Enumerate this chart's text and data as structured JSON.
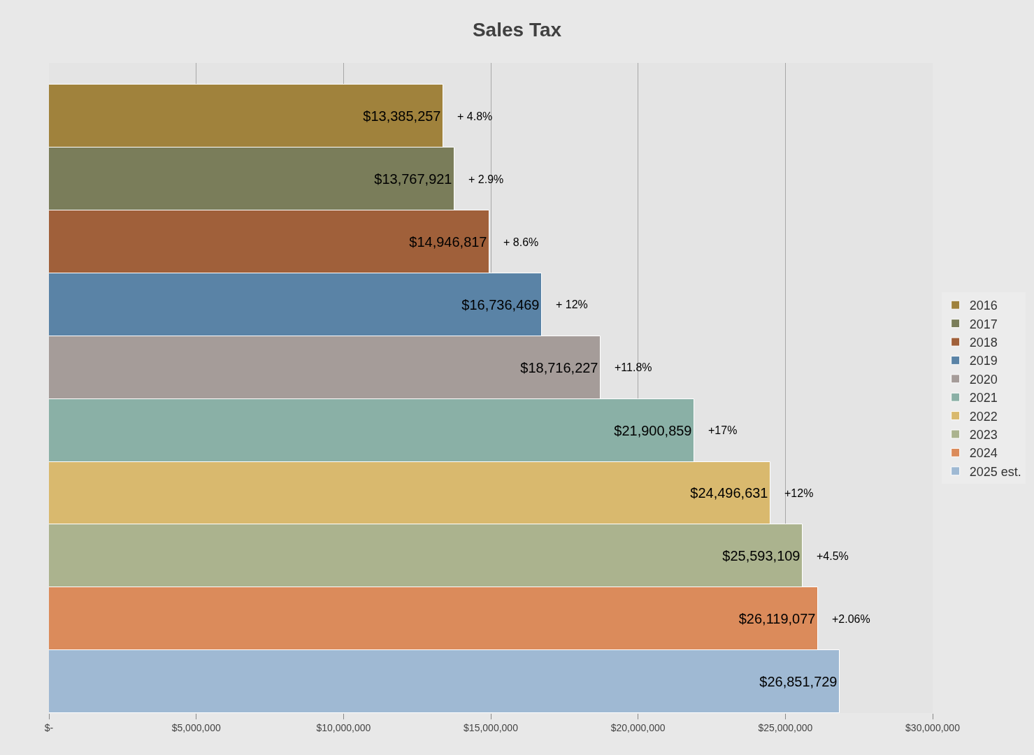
{
  "chart_data": {
    "type": "bar",
    "orientation": "horizontal",
    "title": "Sales Tax",
    "categories": [
      null,
      null,
      null,
      null,
      null,
      null,
      null,
      null,
      null,
      null
    ],
    "series": [
      {
        "name": "2016",
        "color": "#a0823c",
        "values": [
          13385257,
          null,
          null,
          null,
          null,
          null,
          null,
          null,
          null,
          null
        ],
        "value_labels": [
          "$13,385,257",
          null,
          null,
          null,
          null,
          null,
          null,
          null,
          null,
          null
        ]
      },
      {
        "name": "2017",
        "color": "#7a7d5a",
        "values": [
          null,
          13767921,
          null,
          null,
          null,
          null,
          null,
          null,
          null,
          null
        ],
        "value_labels": [
          null,
          "$13,767,921",
          null,
          null,
          null,
          null,
          null,
          null,
          null,
          null
        ]
      },
      {
        "name": "2018",
        "color": "#a0603a",
        "values": [
          null,
          null,
          14946817,
          null,
          null,
          null,
          null,
          null,
          null,
          null
        ],
        "value_labels": [
          null,
          null,
          "$14,946,817",
          null,
          null,
          null,
          null,
          null,
          null,
          null
        ]
      },
      {
        "name": "2019",
        "color": "#5a83a6",
        "values": [
          null,
          null,
          null,
          16736469,
          null,
          null,
          null,
          null,
          null,
          null
        ],
        "value_labels": [
          null,
          null,
          null,
          "$16,736,469",
          null,
          null,
          null,
          null,
          null,
          null
        ]
      },
      {
        "name": "2020",
        "color": "#a59c99",
        "values": [
          null,
          null,
          null,
          null,
          18716227,
          null,
          null,
          null,
          null,
          null
        ],
        "value_labels": [
          null,
          null,
          null,
          null,
          "$18,716,227",
          null,
          null,
          null,
          null,
          null
        ]
      },
      {
        "name": "2021",
        "color": "#8ab0a6",
        "values": [
          null,
          null,
          null,
          null,
          null,
          21900859,
          null,
          null,
          null,
          null
        ],
        "value_labels": [
          null,
          null,
          null,
          null,
          null,
          "$21,900,859",
          null,
          null,
          null,
          null
        ]
      },
      {
        "name": "2022",
        "color": "#d9b96e",
        "values": [
          null,
          null,
          null,
          null,
          null,
          null,
          24496631,
          null,
          null,
          null
        ],
        "value_labels": [
          null,
          null,
          null,
          null,
          null,
          null,
          "$24,496,631",
          null,
          null,
          null
        ]
      },
      {
        "name": "2023",
        "color": "#abb38e",
        "values": [
          null,
          null,
          null,
          null,
          null,
          null,
          null,
          25593109,
          null,
          null
        ],
        "value_labels": [
          null,
          null,
          null,
          null,
          null,
          null,
          null,
          "$25,593,109",
          null,
          null
        ]
      },
      {
        "name": "2024",
        "color": "#db8b5b",
        "values": [
          null,
          null,
          null,
          null,
          null,
          null,
          null,
          null,
          26119077,
          null
        ],
        "value_labels": [
          null,
          null,
          null,
          null,
          null,
          null,
          null,
          null,
          "$26,119,077",
          null
        ]
      },
      {
        "name": "2025 est.",
        "color": "#9fb9d3",
        "values": [
          null,
          null,
          null,
          null,
          null,
          null,
          null,
          null,
          null,
          26851729
        ],
        "value_labels": [
          null,
          null,
          null,
          null,
          null,
          null,
          null,
          null,
          null,
          "$26,851,729"
        ]
      }
    ],
    "annotations": [
      "+ 4.8%",
      "+ 2.9%",
      "+ 8.6%",
      "+ 12%",
      "+11.8%",
      "+17%",
      "+12%",
      "+4.5%",
      "+2.06%"
    ],
    "xlim": [
      0,
      30000000
    ],
    "xticks": [
      {
        "value": 0,
        "label": "$-"
      },
      {
        "value": 5000000,
        "label": "$5,000,000"
      },
      {
        "value": 10000000,
        "label": "$10,000,000"
      },
      {
        "value": 15000000,
        "label": "$15,000,000"
      },
      {
        "value": 20000000,
        "label": "$20,000,000"
      },
      {
        "value": 25000000,
        "label": "$25,000,000"
      },
      {
        "value": 30000000,
        "label": "$30,000,000"
      }
    ],
    "grid": "x",
    "legend": "right"
  }
}
